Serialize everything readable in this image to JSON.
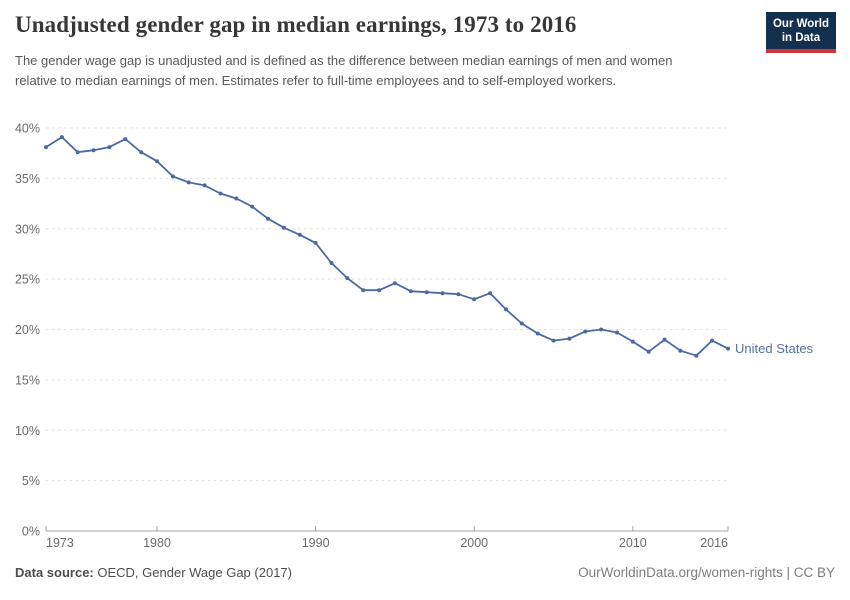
{
  "header": {
    "title": "Unadjusted gender gap in median earnings, 1973 to 2016",
    "subtitle": "The gender wage gap is unadjusted and is defined as the difference between median earnings of men and women relative to median earnings of men. Estimates refer to full-time employees and to self-employed workers.",
    "logo": {
      "line1": "Our World",
      "line2": "in Data"
    }
  },
  "chart_data": {
    "type": "line",
    "title": "Unadjusted gender gap in median earnings, 1973 to 2016",
    "xlabel": "",
    "ylabel": "",
    "xlim": [
      1973,
      2016
    ],
    "ylim": [
      0,
      40
    ],
    "grid": "dashed-horizontal",
    "legend_position": "end-of-line-label",
    "x_ticks": [
      {
        "year": 1973,
        "label": "1973",
        "align": "start"
      },
      {
        "year": 1980,
        "label": "1980",
        "align": "middle"
      },
      {
        "year": 1990,
        "label": "1990",
        "align": "middle"
      },
      {
        "year": 2000,
        "label": "2000",
        "align": "middle"
      },
      {
        "year": 2010,
        "label": "2010",
        "align": "middle"
      },
      {
        "year": 2016,
        "label": "2016",
        "align": "end"
      }
    ],
    "y_ticks": [
      {
        "value": 0,
        "label": "0%"
      },
      {
        "value": 5,
        "label": "5%"
      },
      {
        "value": 10,
        "label": "10%"
      },
      {
        "value": 15,
        "label": "15%"
      },
      {
        "value": 20,
        "label": "20%"
      },
      {
        "value": 25,
        "label": "25%"
      },
      {
        "value": 30,
        "label": "30%"
      },
      {
        "value": 35,
        "label": "35%"
      },
      {
        "value": 40,
        "label": "40%"
      }
    ],
    "series": [
      {
        "name": "United States",
        "color": "#4b6aa4",
        "years": [
          1973,
          1974,
          1975,
          1976,
          1977,
          1978,
          1979,
          1980,
          1981,
          1982,
          1983,
          1984,
          1985,
          1986,
          1987,
          1988,
          1989,
          1990,
          1991,
          1992,
          1993,
          1994,
          1995,
          1996,
          1997,
          1998,
          1999,
          2000,
          2001,
          2002,
          2003,
          2004,
          2005,
          2006,
          2007,
          2008,
          2009,
          2010,
          2011,
          2012,
          2013,
          2014,
          2015,
          2016
        ],
        "values": [
          38.1,
          39.1,
          37.6,
          37.8,
          38.1,
          38.9,
          37.6,
          36.7,
          35.2,
          34.6,
          34.3,
          33.5,
          33.0,
          32.2,
          31.0,
          30.1,
          29.4,
          28.6,
          26.6,
          25.1,
          23.9,
          23.9,
          24.6,
          23.8,
          23.7,
          23.6,
          23.5,
          23.0,
          23.6,
          22.0,
          20.6,
          19.6,
          18.9,
          19.1,
          19.8,
          20.0,
          19.7,
          18.8,
          17.8,
          19.0,
          17.9,
          17.4,
          18.9,
          18.1
        ]
      }
    ]
  },
  "footer": {
    "datasource_label": "Data source:",
    "datasource_value": "OECD, Gender Wage Gap (2017)",
    "credit": "OurWorldinData.org/women-rights | CC BY"
  },
  "colors": {
    "line": "#4b6aa4",
    "end_label": "#54739e",
    "grid": "#e0e0e0",
    "axis": "#a3a3a3",
    "tick_label": "#6b6b6b",
    "logo_bg": "#14304f",
    "logo_red": "#cf3439"
  }
}
